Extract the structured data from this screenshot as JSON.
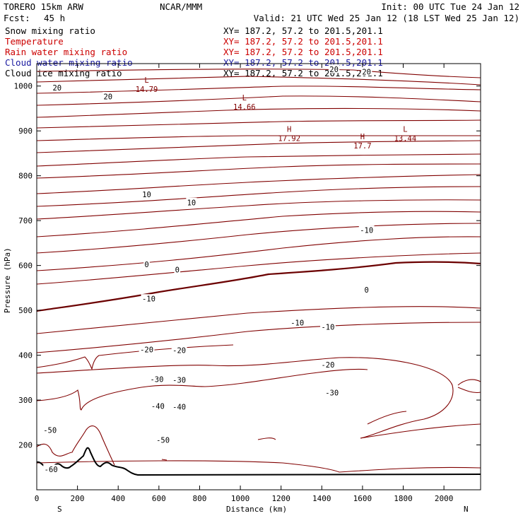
{
  "header": {
    "model": "TORERO  15km ARW",
    "center": "NCAR/MMM",
    "init": "Init: 00 UTC Tue 24 Jan 12",
    "fcst_label": "Fcst:",
    "fcst_value": "45 h",
    "valid": "Valid: 21 UTC Wed 25 Jan 12 (18 LST Wed 25 Jan 12)"
  },
  "fields": [
    {
      "name": "Snow mixing ratio",
      "xy": "XY= 187.2, 57.2 to 201.5,201.1",
      "color": "#000000"
    },
    {
      "name": "Temperature",
      "xy": "XY= 187.2, 57.2 to 201.5,201.1",
      "color": "#cc0000"
    },
    {
      "name": "Rain water mixing ratio",
      "xy": "XY= 187.2, 57.2 to 201.5,201.1",
      "color": "#cc0000"
    },
    {
      "name": "Cloud water mixing ratio",
      "xy": "XY= 187.2, 57.2 to 201.5,201.1",
      "color": "#1a1aa0"
    },
    {
      "name": "Cloud ice mixing ratio",
      "xy": "XY= 187.2, 57.2 to 201.5,201.1",
      "color": "#000000"
    }
  ],
  "chart_data": {
    "type": "contour-cross-section",
    "xlabel": "Distance (km)",
    "ylabel": "Pressure (hPa)",
    "xlim": [
      0,
      2180
    ],
    "ylim": [
      1050,
      100
    ],
    "xticks": [
      "0",
      "200",
      "400",
      "600",
      "800",
      "1000",
      "1200",
      "1400",
      "1600",
      "1800",
      "2000"
    ],
    "yticks": [
      "200",
      "300",
      "400",
      "500",
      "600",
      "700",
      "800",
      "900",
      "1000"
    ],
    "left_end": "S",
    "right_end": "N",
    "contour_color": "#800000",
    "terrain_color": "#000000",
    "contour_labels": [
      {
        "text": "-60",
        "x": 70,
        "p": 145
      },
      {
        "text": "-50",
        "x": 620,
        "p": 210
      },
      {
        "text": "-50",
        "x": 65,
        "p": 232
      },
      {
        "text": "-40",
        "x": 595,
        "p": 286
      },
      {
        "text": "-40",
        "x": 700,
        "p": 284
      },
      {
        "text": "-30",
        "x": 1450,
        "p": 316
      },
      {
        "text": "-30",
        "x": 590,
        "p": 346
      },
      {
        "text": "-30",
        "x": 700,
        "p": 344
      },
      {
        "text": "-20",
        "x": 1430,
        "p": 378
      },
      {
        "text": "-20",
        "x": 540,
        "p": 412
      },
      {
        "text": "-20",
        "x": 700,
        "p": 410
      },
      {
        "text": "-10",
        "x": 1430,
        "p": 462
      },
      {
        "text": "-10",
        "x": 1280,
        "p": 472
      },
      {
        "text": "-10",
        "x": 550,
        "p": 525
      },
      {
        "text": "0",
        "x": 1620,
        "p": 545
      },
      {
        "text": "0",
        "x": 690,
        "p": 590
      },
      {
        "text": "0",
        "x": 540,
        "p": 602
      },
      {
        "text": "-10",
        "x": 1620,
        "p": 678
      },
      {
        "text": "10",
        "x": 760,
        "p": 740
      },
      {
        "text": "10",
        "x": 540,
        "p": 758
      },
      {
        "text": "20",
        "x": 350,
        "p": 976
      },
      {
        "text": "20",
        "x": 100,
        "p": 996
      },
      {
        "text": "20",
        "x": 1620,
        "p": 1031
      },
      {
        "text": "20",
        "x": 1460,
        "p": 1037
      }
    ],
    "pressure_centers": [
      {
        "kind": "H",
        "value": "17.92",
        "x": 1240,
        "p": 893
      },
      {
        "kind": "H",
        "value": "17.7",
        "x": 1600,
        "p": 877
      },
      {
        "kind": "L",
        "value": "13.44",
        "x": 1810,
        "p": 893
      },
      {
        "kind": "L",
        "value": "14.66",
        "x": 1020,
        "p": 963
      },
      {
        "kind": "L",
        "value": "14.79",
        "x": 540,
        "p": 1003
      }
    ]
  }
}
